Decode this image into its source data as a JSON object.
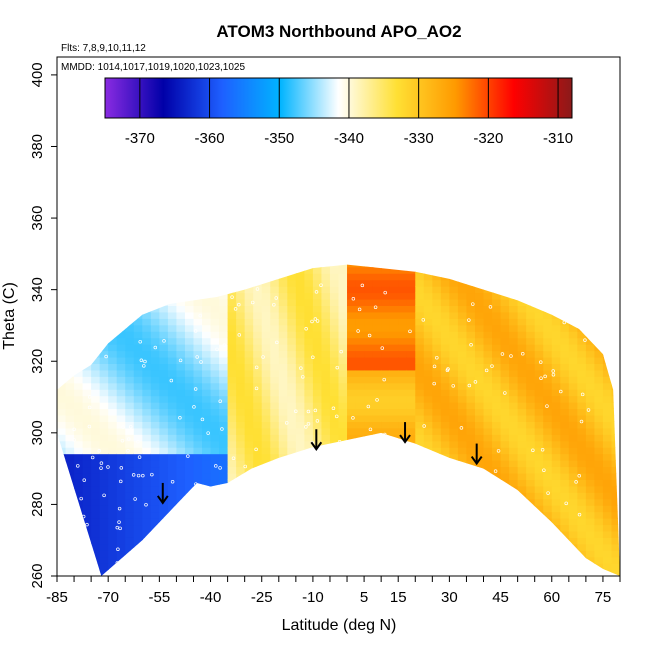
{
  "chart_data": {
    "type": "heatmap",
    "title": "ATOM3 Northbound APO_AO2",
    "annotations": [
      "Flts: 7,8,9,10,11,12",
      "MMDD: 1014,1017,1019,1020,1023,1025"
    ],
    "xlabel": "Latitude (deg N)",
    "ylabel": "Theta (C)",
    "xlim": [
      -85,
      80
    ],
    "ylim": [
      260,
      405
    ],
    "x_ticks": [
      -85,
      -70,
      -55,
      -40,
      -25,
      -10,
      5,
      15,
      30,
      45,
      60,
      75
    ],
    "y_ticks": [
      260,
      280,
      300,
      320,
      340,
      360,
      380,
      400
    ],
    "colorbar": {
      "range": [
        -375,
        -308
      ],
      "ticks": [
        -370,
        -360,
        -350,
        -340,
        -330,
        -320,
        -310
      ],
      "colors": [
        "#8a2be2",
        "#0000a8",
        "#1e5fff",
        "#00b4ff",
        "#ffffff",
        "#ffe034",
        "#ff9a00",
        "#ff0000",
        "#8b1a1a"
      ]
    },
    "surface_boundary": {
      "lat": [
        -72,
        -60,
        -50,
        -44,
        -40,
        -35,
        -28,
        -20,
        -10,
        0,
        10,
        20,
        30,
        40,
        50,
        60,
        70,
        75
      ],
      "theta": [
        260,
        270,
        280,
        286,
        285,
        286,
        290,
        293,
        296,
        298,
        300,
        297,
        293,
        290,
        284,
        275,
        265,
        262
      ]
    },
    "top_boundary": {
      "lat": [
        -85,
        -80,
        -75,
        -70,
        -60,
        -52,
        -45,
        -38,
        -30,
        -20,
        -10,
        0,
        10,
        20,
        30,
        40,
        50,
        60,
        68,
        75,
        78
      ],
      "theta": [
        312,
        316,
        319,
        325,
        333,
        336,
        337,
        338,
        340,
        343,
        346,
        347,
        346,
        345,
        343,
        340,
        337,
        333,
        329,
        322,
        312
      ]
    },
    "arrows": [
      {
        "lat": -54,
        "theta": 286
      },
      {
        "lat": -9,
        "theta": 301
      },
      {
        "lat": 17,
        "theta": 303
      },
      {
        "lat": 38,
        "theta": 297
      }
    ],
    "grid": false,
    "legend": "colorbar-top"
  }
}
